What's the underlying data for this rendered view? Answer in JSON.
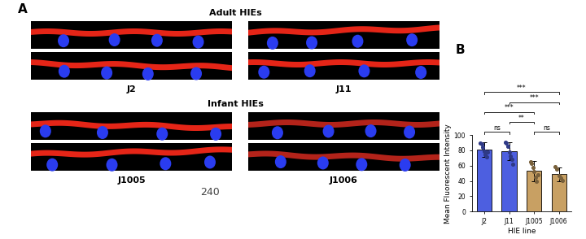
{
  "panels": {
    "A": {
      "label": "A",
      "groups": [
        {
          "title": "Adult HIEs",
          "images": [
            "J2",
            "J11"
          ]
        },
        {
          "title": "Infant HIEs",
          "images": [
            "J1005",
            "J1006"
          ]
        }
      ],
      "page_number": "240"
    }
  },
  "chart_data": {
    "type": "bar",
    "panel_label": "B",
    "categories": [
      "J2",
      "J11",
      "J1005",
      "J1006"
    ],
    "values": [
      81,
      79,
      53,
      49
    ],
    "errors": [
      10,
      12,
      13,
      9
    ],
    "points": [
      [
        90,
        88,
        84,
        79,
        75,
        71,
        78
      ],
      [
        91,
        90,
        85,
        78,
        73,
        68,
        62
      ],
      [
        65,
        63,
        58,
        52,
        45,
        40,
        48
      ],
      [
        59,
        55,
        47,
        44,
        41
      ]
    ],
    "colors": [
      "#4d5fe0",
      "#4d5fe0",
      "#c8a063",
      "#c8a063"
    ],
    "xlabel": "HIE line",
    "ylabel": "Mean Fluorescent Intensity",
    "ylim": [
      0,
      100
    ],
    "yticks": [
      0,
      20,
      40,
      60,
      80,
      100
    ],
    "annotations": [
      {
        "from": "J2",
        "to": "J11",
        "label": "ns"
      },
      {
        "from": "J11",
        "to": "J1005",
        "label": "**"
      },
      {
        "from": "J1005",
        "to": "J1006",
        "label": "ns"
      },
      {
        "from": "J2",
        "to": "J1005",
        "label": "***"
      },
      {
        "from": "J11",
        "to": "J1006",
        "label": "***"
      },
      {
        "from": "J2",
        "to": "J1006",
        "label": "***"
      }
    ]
  }
}
